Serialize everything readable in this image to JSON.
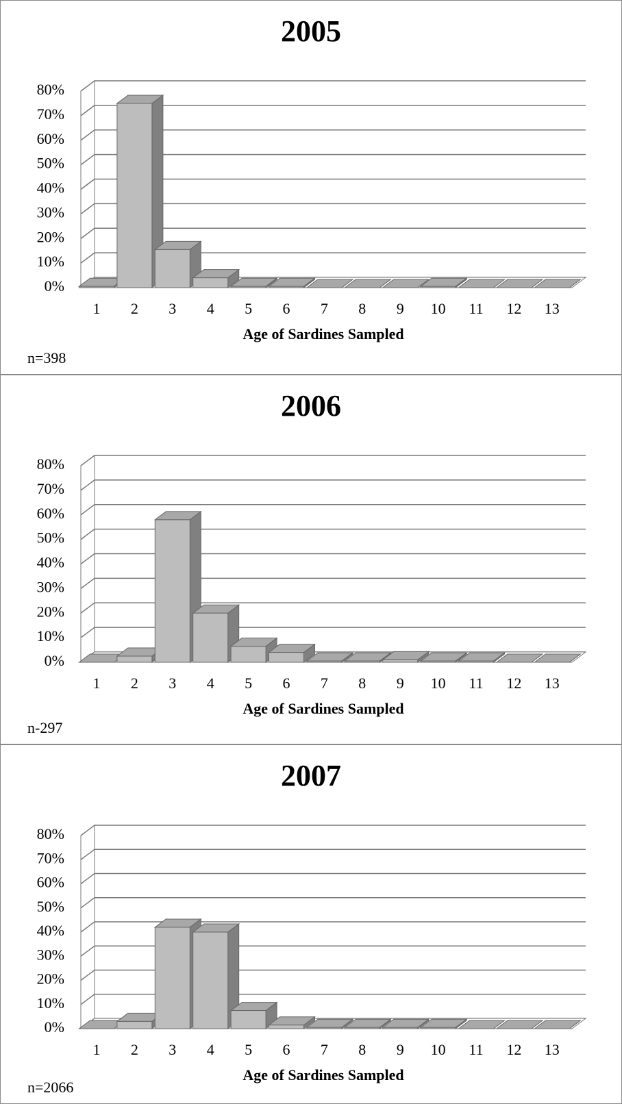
{
  "chart_data": [
    {
      "type": "bar3d",
      "title": "2005",
      "x_label": "Age of Sardines Sampled",
      "note": "n=398",
      "categories": [
        "1",
        "2",
        "3",
        "4",
        "5",
        "6",
        "7",
        "8",
        "9",
        "10",
        "11",
        "12",
        "13"
      ],
      "values": [
        0.5,
        75,
        15.5,
        4,
        0.5,
        0.5,
        0,
        0,
        0,
        0.5,
        0,
        0,
        0
      ],
      "color": "#bdbdbd",
      "ylim": [
        0,
        80
      ],
      "yticks": [
        {
          "value": 0,
          "label": "0%"
        },
        {
          "value": 10,
          "label": "10%"
        },
        {
          "value": 20,
          "label": "20%"
        },
        {
          "value": 30,
          "label": "30%"
        },
        {
          "value": 40,
          "label": "40%"
        },
        {
          "value": 50,
          "label": "50%"
        },
        {
          "value": 60,
          "label": "60%"
        },
        {
          "value": 70,
          "label": "70%"
        },
        {
          "value": 80,
          "label": "80%"
        }
      ],
      "grid": true
    },
    {
      "type": "bar3d",
      "title": "2006",
      "x_label": "Age of Sardines Sampled",
      "note": "n-297",
      "categories": [
        "1",
        "2",
        "3",
        "4",
        "5",
        "6",
        "7",
        "8",
        "9",
        "10",
        "11",
        "12",
        "13"
      ],
      "values": [
        0,
        2.5,
        58,
        20,
        6.5,
        4,
        0.5,
        0.5,
        1,
        0.5,
        0.5,
        0,
        0
      ],
      "color": "#bdbdbd",
      "ylim": [
        0,
        80
      ],
      "yticks": [
        {
          "value": 0,
          "label": "0%"
        },
        {
          "value": 10,
          "label": "10%"
        },
        {
          "value": 20,
          "label": "20%"
        },
        {
          "value": 30,
          "label": "30%"
        },
        {
          "value": 40,
          "label": "40%"
        },
        {
          "value": 50,
          "label": "50%"
        },
        {
          "value": 60,
          "label": "60%"
        },
        {
          "value": 70,
          "label": "70%"
        },
        {
          "value": 80,
          "label": "80%"
        }
      ],
      "grid": true
    },
    {
      "type": "bar3d",
      "title": "2007",
      "x_label": "Age of Sardines Sampled",
      "note": "n=2066",
      "categories": [
        "1",
        "2",
        "3",
        "4",
        "5",
        "6",
        "7",
        "8",
        "9",
        "10",
        "11",
        "12",
        "13"
      ],
      "values": [
        0,
        3,
        42,
        40,
        7.5,
        1.5,
        0.5,
        0.5,
        0.5,
        0.5,
        0,
        0,
        0
      ],
      "color": "#bdbdbd",
      "ylim": [
        0,
        80
      ],
      "yticks": [
        {
          "value": 0,
          "label": "0%"
        },
        {
          "value": 10,
          "label": "10%"
        },
        {
          "value": 20,
          "label": "20%"
        },
        {
          "value": 30,
          "label": "30%"
        },
        {
          "value": 40,
          "label": "40%"
        },
        {
          "value": 50,
          "label": "50%"
        },
        {
          "value": 60,
          "label": "60%"
        },
        {
          "value": 70,
          "label": "70%"
        },
        {
          "value": 80,
          "label": "80%"
        }
      ],
      "grid": true
    }
  ]
}
